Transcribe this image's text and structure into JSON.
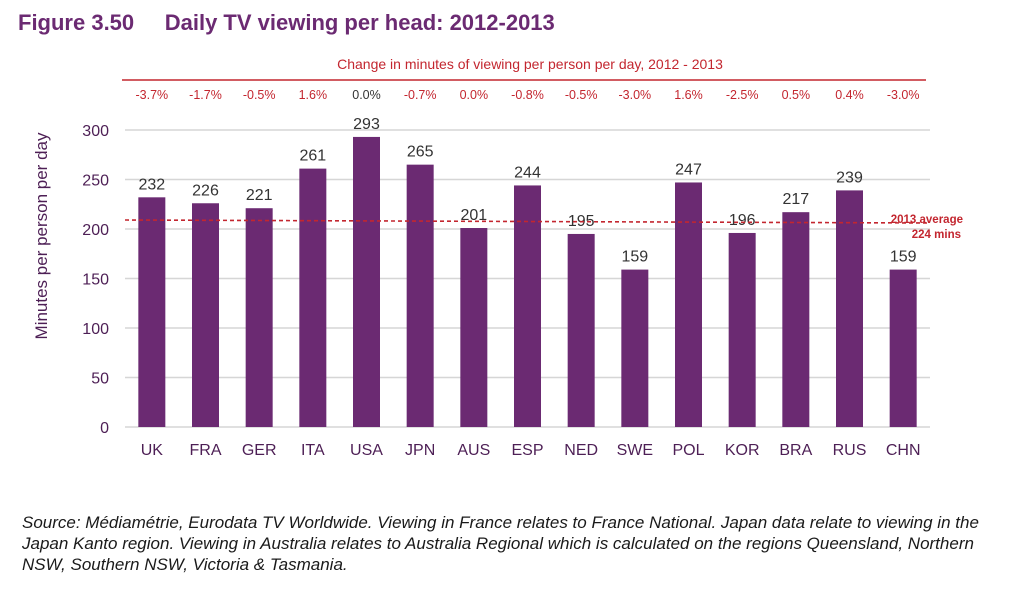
{
  "figure": {
    "number": "Figure 3.50",
    "title": "Daily TV viewing per head: 2012-2013"
  },
  "change_header": "Change in minutes of viewing per person per day, 2012 - 2013",
  "source_note": "Source: Médiamétrie, Eurodata TV Worldwide. Viewing in France relates to France National. Japan data relate to viewing in the Japan Kanto region. Viewing in Australia relates to Australia Regional which is calculated on the regions Queensland, Northern NSW, Southern NSW, Victoria & Tasmania.",
  "colors": {
    "bar": "#6b2a72",
    "title": "#6b2a72",
    "change_text": "#c3262f",
    "average_line": "#c3262f",
    "grid": "#d6d6d6",
    "axis_text": "#4d1f55"
  },
  "chart_data": {
    "type": "bar",
    "categories": [
      "UK",
      "FRA",
      "GER",
      "ITA",
      "USA",
      "JPN",
      "AUS",
      "ESP",
      "NED",
      "SWE",
      "POL",
      "KOR",
      "BRA",
      "RUS",
      "CHN"
    ],
    "values": [
      232,
      226,
      221,
      261,
      293,
      265,
      201,
      244,
      195,
      159,
      247,
      196,
      217,
      239,
      159
    ],
    "changes": [
      "-3.7%",
      "-1.7%",
      "-0.5%",
      "1.6%",
      "0.0%",
      "-0.7%",
      "0.0%",
      "-0.8%",
      "-0.5%",
      "-3.0%",
      "1.6%",
      "-2.5%",
      "0.5%",
      "0.4%",
      "-3.0%"
    ],
    "ylabel": "Minutes per person per day",
    "ylim": [
      0,
      300
    ],
    "yticks": [
      0,
      50,
      100,
      150,
      200,
      250,
      300
    ],
    "average": {
      "value": 224,
      "label_line1": "2013 average",
      "label_line2": "224 mins"
    },
    "grid": true,
    "legend": "none"
  }
}
